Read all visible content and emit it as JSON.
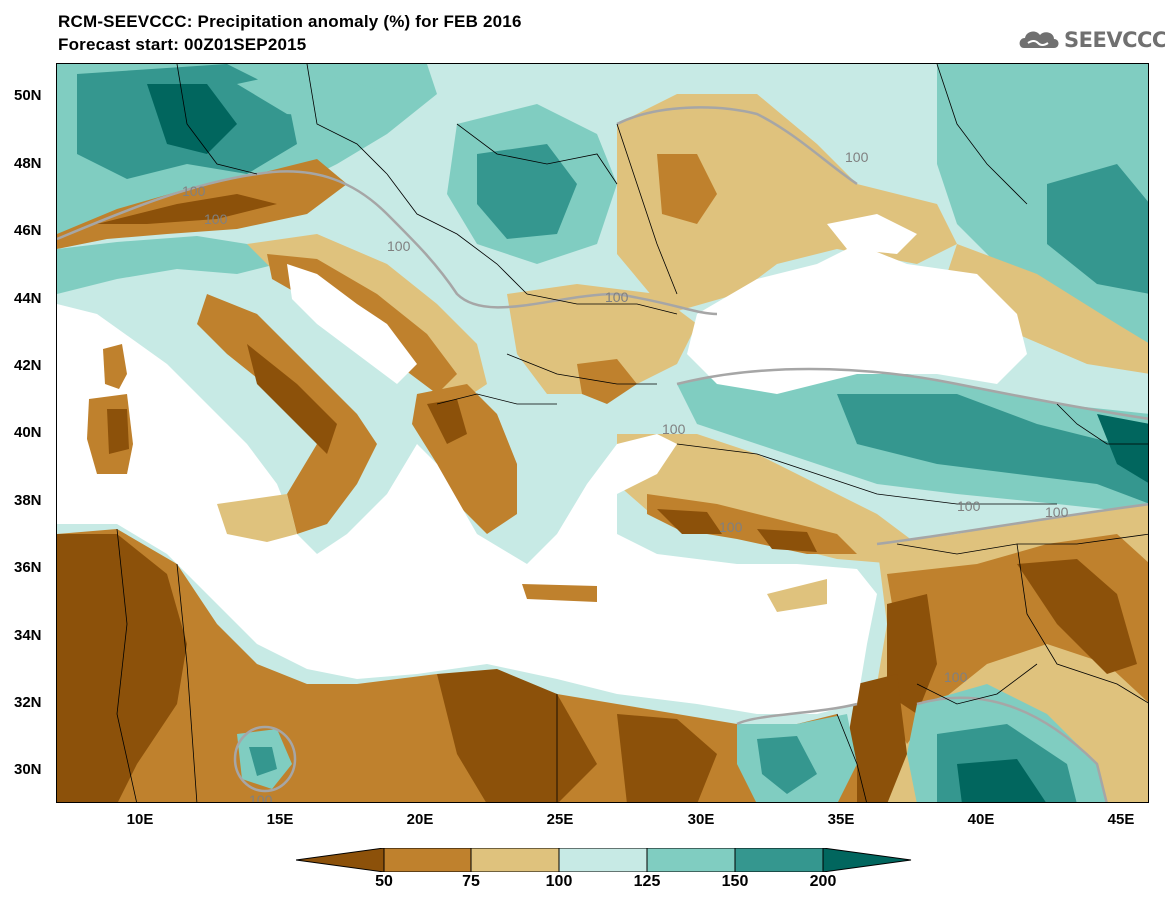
{
  "header": {
    "title_line1": "RCM-SEEVCCC: Precipitation anomaly (%) for FEB 2016",
    "title_line2": "Forecast start: 00Z01SEP2015",
    "logo_text": "SEEVCCC"
  },
  "map": {
    "lat_labels": [
      "50N",
      "48N",
      "46N",
      "44N",
      "42N",
      "40N",
      "38N",
      "36N",
      "34N",
      "32N",
      "30N"
    ],
    "lon_labels": [
      "10E",
      "15E",
      "20E",
      "25E",
      "30E",
      "35E",
      "40E",
      "45E"
    ],
    "contour_label": "100",
    "colors": {
      "lt50": "#8c510a",
      "50_75": "#bf812d",
      "75_100": "#dfc27d",
      "100_125": "#c7eae5",
      "125_150": "#80cdc1",
      "150_200": "#35978f",
      "gt200": "#01665e",
      "contour_100": "#a6a6a6",
      "sea": "#ffffff"
    }
  },
  "legend": {
    "ticks": [
      "50",
      "75",
      "100",
      "125",
      "150",
      "200"
    ],
    "colors": [
      "#8c510a",
      "#bf812d",
      "#dfc27d",
      "#c7eae5",
      "#80cdc1",
      "#35978f",
      "#01665e"
    ]
  }
}
